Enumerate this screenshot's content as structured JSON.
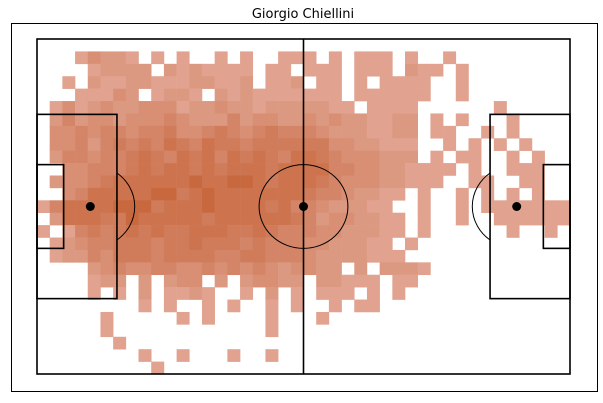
{
  "chart_data": {
    "type": "heatmap",
    "title": "Giorgio Chiellini",
    "xlim": [
      0,
      120
    ],
    "ylim": [
      0,
      80
    ],
    "grid": false,
    "colors": {
      "low": "#e6b0a2",
      "high": "#c8683f",
      "line": "#000000",
      "background": "#ffffff"
    },
    "bins": {
      "nx": 42,
      "ny": 27
    },
    "rows": [
      "...........................................",
      "...13221 1.1 .1 1..111 1.111 1..1.........",
      "..  12222 2121111 11 111.111 211 1........",
      ". 1 2112211122112 112 11 1 1111 .1........",
      ". .11132 1221 2121111111 111111..1........",
      ".131232233312232212222211 1111 .... 1.....",
      ".24233233343222423322323221122 1.1...1....",
      ".33434434453345434544432221122 11..1.1...",
      ".33424545465465545555553322111  1 1.1.1..",
      ".24434456546564656546654333222 1 11..1 1.",
      "..3344456566565666566664433221111 1..111.",
      ".2334566666676677656665433322111  11..11..",
      "..346666677567666666654432211 1 .1.1 1 1..",
      "1466667775666766665644322211 .1..1 1111111",
      ".2666557666665666666542332211 1..1..111111",
      "1.145456565566655654443322211.1......1..1.",
      ".123445554556555454443322211 1..........",
      ".1224355545555445544432222111...........",
      "..  23433443343434323322 2 2221.........",
      "..  122 2 233 2 23322 22111 11 ..........",
      "..  1 1 2 1121  1 2 1 111 1 1...........",
      "....    1 1  1 1  1 1  1 11.............",
      ".....1.....1 1....1...1..................",
      ".....1............1........................",
      "......1...............................",
      "........1..1...1..1.......................",
      ".........1................................"
    ],
    "levels": {
      "1": 0.18,
      "2": 0.32,
      "3": 0.46,
      "4": 0.6,
      "5": 0.72,
      "6": 0.84,
      "7": 1.0
    },
    "pitch": {
      "length": 120,
      "width": 80,
      "penalty_box": {
        "depth": 18,
        "width": 44
      },
      "six_yard_box": {
        "depth": 6,
        "width": 20
      },
      "penalty_spot": 12,
      "centre_circle_radius": 10,
      "arc_radius": 10
    }
  }
}
